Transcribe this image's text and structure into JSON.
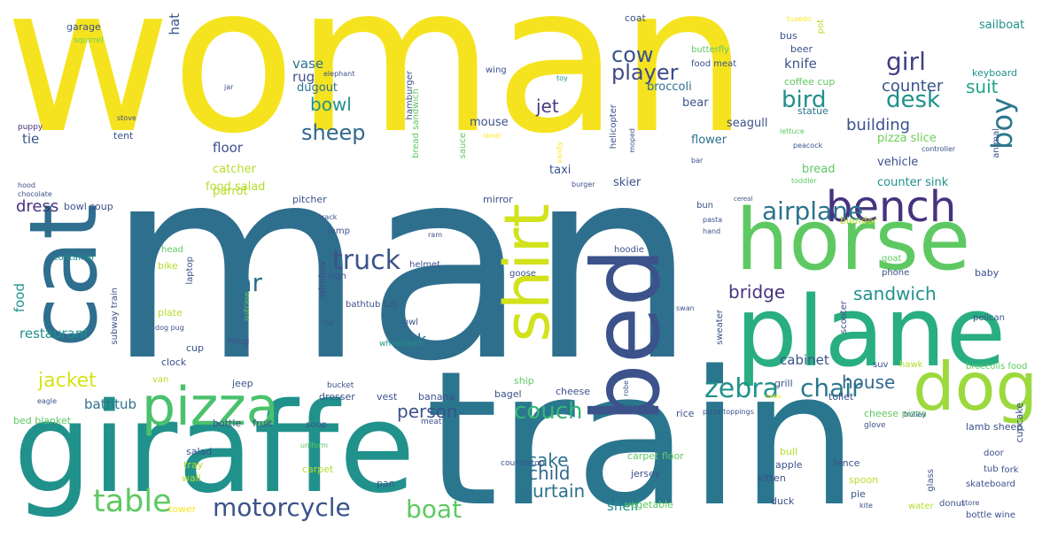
{
  "words": [
    {
      "text": "woman",
      "color": "#f5e31f",
      "vertical": false
    },
    {
      "text": "man",
      "color": "#2f6f8e",
      "vertical": false
    },
    {
      "text": "train",
      "color": "#2a768e",
      "vertical": false
    },
    {
      "text": "giraffe",
      "color": "#21918c",
      "vertical": false
    },
    {
      "text": "plane",
      "color": "#28ae80",
      "vertical": false
    },
    {
      "text": "horse",
      "color": "#5ec962",
      "vertical": false
    },
    {
      "text": "cat",
      "color": "#2e6e8e",
      "vertical": true
    },
    {
      "text": "bed",
      "color": "#3b528b",
      "vertical": true
    },
    {
      "text": "dog",
      "color": "#9bd93c",
      "vertical": false
    },
    {
      "text": "shirt",
      "color": "#d2e21b",
      "vertical": true
    },
    {
      "text": "pizza",
      "color": "#4ac16d",
      "vertical": false
    },
    {
      "text": "bench",
      "color": "#46337e",
      "vertical": false
    },
    {
      "text": "table",
      "color": "#5ec962",
      "vertical": false
    },
    {
      "text": "motorcycle",
      "color": "#3b528b",
      "vertical": false
    },
    {
      "text": "truck",
      "color": "#3b528b",
      "vertical": false
    },
    {
      "text": "airplane",
      "color": "#2c728e",
      "vertical": false
    },
    {
      "text": "zebra",
      "color": "#21918c",
      "vertical": false
    },
    {
      "text": "chair",
      "color": "#2a788e",
      "vertical": false
    },
    {
      "text": "couch",
      "color": "#35b779",
      "vertical": false
    },
    {
      "text": "boat",
      "color": "#5ec962",
      "vertical": false
    },
    {
      "text": "cow",
      "color": "#3b528b",
      "vertical": false
    },
    {
      "text": "player",
      "color": "#3e4a89",
      "vertical": false
    },
    {
      "text": "car",
      "color": "#2c728e",
      "vertical": false
    },
    {
      "text": "sheep",
      "color": "#31688e",
      "vertical": false
    },
    {
      "text": "bird",
      "color": "#218f8d",
      "vertical": false
    },
    {
      "text": "desk",
      "color": "#21918c",
      "vertical": false
    },
    {
      "text": "boy",
      "color": "#2a788e",
      "vertical": true
    },
    {
      "text": "girl",
      "color": "#433e85",
      "vertical": false
    },
    {
      "text": "person",
      "color": "#3b528b",
      "vertical": false
    },
    {
      "text": "sandwich",
      "color": "#21918c",
      "vertical": false
    },
    {
      "text": "cake",
      "color": "#2c728e",
      "vertical": false
    },
    {
      "text": "jacket",
      "color": "#d8e219",
      "vertical": false
    },
    {
      "text": "curtain",
      "color": "#2c728e",
      "vertical": false
    },
    {
      "text": "house",
      "color": "#31688e",
      "vertical": false
    },
    {
      "text": "bridge",
      "color": "#46337e",
      "vertical": false
    },
    {
      "text": "child",
      "color": "#31688e",
      "vertical": false
    },
    {
      "text": "bowl",
      "color": "#21918c",
      "vertical": false
    },
    {
      "text": "suit",
      "color": "#20a486",
      "vertical": false
    },
    {
      "text": "counter",
      "color": "#3b528b",
      "vertical": false
    },
    {
      "text": "building",
      "color": "#3b528b",
      "vertical": false
    },
    {
      "text": "dress",
      "color": "#46337e",
      "vertical": false
    },
    {
      "text": "sink",
      "color": "#2c728e",
      "vertical": false
    },
    {
      "text": "jet",
      "color": "#443983",
      "vertical": false
    },
    {
      "text": "vase",
      "color": "#2c728e",
      "vertical": false
    },
    {
      "text": "rug",
      "color": "#3b528b",
      "vertical": false
    },
    {
      "text": "food",
      "color": "#21918c",
      "vertical": true
    },
    {
      "text": "shelf",
      "color": "#21918c",
      "vertical": false
    },
    {
      "text": "bathtub",
      "color": "#2c728e",
      "vertical": false
    },
    {
      "text": "cabinet",
      "color": "#3b528b",
      "vertical": false
    },
    {
      "text": "knife",
      "color": "#3b528b",
      "vertical": false
    },
    {
      "text": "floor",
      "color": "#3b528b",
      "vertical": false
    },
    {
      "text": "hat",
      "color": "#3b528b",
      "vertical": true
    },
    {
      "text": "restaurant",
      "color": "#21918c",
      "vertical": false
    },
    {
      "text": "tie",
      "color": "#3b528b",
      "vertical": false
    },
    {
      "text": "dugout",
      "color": "#2c728e",
      "vertical": false
    },
    {
      "text": "mouse",
      "color": "#3b528b",
      "vertical": false
    },
    {
      "text": "seagull",
      "color": "#3b528b",
      "vertical": false
    },
    {
      "text": "flower",
      "color": "#2c728e",
      "vertical": false
    },
    {
      "text": "pizza slice",
      "color": "#6ece58",
      "vertical": false
    },
    {
      "text": "bread",
      "color": "#5ec962",
      "vertical": false
    },
    {
      "text": "vehicle",
      "color": "#3b528b",
      "vertical": false
    },
    {
      "text": "counter sink",
      "color": "#21918c",
      "vertical": false
    },
    {
      "text": "taxi",
      "color": "#3b528b",
      "vertical": false
    },
    {
      "text": "skier",
      "color": "#3b528b",
      "vertical": false
    },
    {
      "text": "broccoli",
      "color": "#2c728e",
      "vertical": false
    },
    {
      "text": "bear",
      "color": "#3b528b",
      "vertical": false
    },
    {
      "text": "coffee cup",
      "color": "#5ec962",
      "vertical": false
    },
    {
      "text": "statue",
      "color": "#2c728e",
      "vertical": false
    },
    {
      "text": "keyboard",
      "color": "#21918c",
      "vertical": false
    },
    {
      "text": "sailboat",
      "color": "#21918c",
      "vertical": false
    },
    {
      "text": "bus",
      "color": "#3b528b",
      "vertical": false
    },
    {
      "text": "beer",
      "color": "#3b528b",
      "vertical": false
    },
    {
      "text": "coat",
      "color": "#3b528b",
      "vertical": false
    },
    {
      "text": "garage",
      "color": "#3b528b",
      "vertical": false
    },
    {
      "text": "squirrel",
      "color": "#6ece58",
      "vertical": false
    },
    {
      "text": "puppy",
      "color": "#46337e",
      "vertical": false
    },
    {
      "text": "tent",
      "color": "#3b528b",
      "vertical": false
    },
    {
      "text": "stove",
      "color": "#3b528b",
      "vertical": false
    },
    {
      "text": "jar",
      "color": "#3b528b",
      "vertical": false
    },
    {
      "text": "wing",
      "color": "#3b528b",
      "vertical": false
    },
    {
      "text": "elephant",
      "color": "#3b528b",
      "vertical": false
    },
    {
      "text": "toy",
      "color": "#21918c",
      "vertical": false
    },
    {
      "text": "butterfly",
      "color": "#5ec962",
      "vertical": false
    },
    {
      "text": "food meat",
      "color": "#3b528b",
      "vertical": false
    },
    {
      "text": "tuxedo",
      "color": "#fde725",
      "vertical": false
    },
    {
      "text": "pot",
      "color": "#b5de2b",
      "vertical": true
    },
    {
      "text": "hamburger",
      "color": "#3b528b",
      "vertical": true
    },
    {
      "text": "bread sandwich",
      "color": "#5ec962",
      "vertical": true
    },
    {
      "text": "sauce",
      "color": "#5ec962",
      "vertical": true
    },
    {
      "text": "lamb",
      "color": "#fde725",
      "vertical": false
    },
    {
      "text": "vanity",
      "color": "#fde725",
      "vertical": true
    },
    {
      "text": "helicopter",
      "color": "#3b528b",
      "vertical": true
    },
    {
      "text": "moped",
      "color": "#3b528b",
      "vertical": true
    },
    {
      "text": "lettuce",
      "color": "#5ec962",
      "vertical": false
    },
    {
      "text": "peacock",
      "color": "#3b528b",
      "vertical": false
    },
    {
      "text": "controller",
      "color": "#3b528b",
      "vertical": false
    },
    {
      "text": "toddler",
      "color": "#5ec962",
      "vertical": false
    },
    {
      "text": "animal",
      "color": "#3b528b",
      "vertical": true
    },
    {
      "text": "bar",
      "color": "#3b528b",
      "vertical": false
    },
    {
      "text": "burger",
      "color": "#3b528b",
      "vertical": false
    },
    {
      "text": "catcher",
      "color": "#b5de2b",
      "vertical": false
    },
    {
      "text": "parrot",
      "color": "#b5de2b",
      "vertical": false
    },
    {
      "text": "food salad",
      "color": "#b5de2b",
      "vertical": false
    },
    {
      "text": "hood",
      "color": "#3b528b",
      "vertical": false
    },
    {
      "text": "chocolate",
      "color": "#3b528b",
      "vertical": false
    },
    {
      "text": "bowl soup",
      "color": "#3b528b",
      "vertical": false
    },
    {
      "text": "pitcher",
      "color": "#3b528b",
      "vertical": false
    },
    {
      "text": "mirror",
      "color": "#3b528b",
      "vertical": false
    },
    {
      "text": "track",
      "color": "#3b528b",
      "vertical": false
    },
    {
      "text": "cereal",
      "color": "#3b528b",
      "vertical": false
    },
    {
      "text": "pasta",
      "color": "#3b528b",
      "vertical": false
    },
    {
      "text": "bun",
      "color": "#3b528b",
      "vertical": false
    },
    {
      "text": "blender",
      "color": "#b5de2b",
      "vertical": false
    },
    {
      "text": "hand",
      "color": "#3b528b",
      "vertical": false
    },
    {
      "text": "lamp",
      "color": "#3b528b",
      "vertical": false
    },
    {
      "text": "ram",
      "color": "#3b528b",
      "vertical": false
    },
    {
      "text": "head",
      "color": "#5ec962",
      "vertical": false
    },
    {
      "text": "container",
      "color": "#21918c",
      "vertical": false
    },
    {
      "text": "bike",
      "color": "#b5de2b",
      "vertical": false
    },
    {
      "text": "laptop",
      "color": "#3b528b",
      "vertical": true
    },
    {
      "text": "window",
      "color": "#3b528b",
      "vertical": true
    },
    {
      "text": "sign",
      "color": "#3b528b",
      "vertical": false
    },
    {
      "text": "helmet",
      "color": "#3b528b",
      "vertical": false
    },
    {
      "text": "goose",
      "color": "#3b528b",
      "vertical": false
    },
    {
      "text": "hoodie",
      "color": "#3b528b",
      "vertical": false
    },
    {
      "text": "goat",
      "color": "#5ec962",
      "vertical": false
    },
    {
      "text": "phone",
      "color": "#3b528b",
      "vertical": false
    },
    {
      "text": "scooter",
      "color": "#3b528b",
      "vertical": true
    },
    {
      "text": "baby",
      "color": "#3b528b",
      "vertical": false
    },
    {
      "text": "subway train",
      "color": "#3b528b",
      "vertical": true
    },
    {
      "text": "plate",
      "color": "#b5de2b",
      "vertical": false
    },
    {
      "text": "suitcase",
      "color": "#5ec962",
      "vertical": true
    },
    {
      "text": "hut",
      "color": "#3b528b",
      "vertical": false
    },
    {
      "text": "bathtub tub",
      "color": "#3b528b",
      "vertical": false
    },
    {
      "text": "dog pug",
      "color": "#3b528b",
      "vertical": false
    },
    {
      "text": "owl",
      "color": "#3b528b",
      "vertical": false
    },
    {
      "text": "wheelchair",
      "color": "#21918c",
      "vertical": false
    },
    {
      "text": "swan",
      "color": "#3b528b",
      "vertical": false
    },
    {
      "text": "sweater",
      "color": "#3b528b",
      "vertical": true
    },
    {
      "text": "pelican",
      "color": "#3b528b",
      "vertical": false
    },
    {
      "text": "mug",
      "color": "#3b528b",
      "vertical": false
    },
    {
      "text": "cup",
      "color": "#3b528b",
      "vertical": false
    },
    {
      "text": "clock",
      "color": "#3b528b",
      "vertical": false
    },
    {
      "text": "van",
      "color": "#b5de2b",
      "vertical": false
    },
    {
      "text": "jeep",
      "color": "#3b528b",
      "vertical": false
    },
    {
      "text": "bucket",
      "color": "#3b528b",
      "vertical": false
    },
    {
      "text": "ship",
      "color": "#5ec962",
      "vertical": false
    },
    {
      "text": "robe",
      "color": "#3b528b",
      "vertical": true
    },
    {
      "text": "suv",
      "color": "#3b528b",
      "vertical": false
    },
    {
      "text": "hawk",
      "color": "#b5de2b",
      "vertical": false
    },
    {
      "text": "broccolis food",
      "color": "#5ec962",
      "vertical": false
    },
    {
      "text": "grill",
      "color": "#3b528b",
      "vertical": false
    },
    {
      "text": "toilet",
      "color": "#3b528b",
      "vertical": false
    },
    {
      "text": "cookie",
      "color": "#fde725",
      "vertical": false
    },
    {
      "text": "eagle",
      "color": "#3b528b",
      "vertical": false
    },
    {
      "text": "bed blanket",
      "color": "#5ec962",
      "vertical": false
    },
    {
      "text": "bottle",
      "color": "#3b528b",
      "vertical": false
    },
    {
      "text": "fruit",
      "color": "#3b528b",
      "vertical": false
    },
    {
      "text": "soup",
      "color": "#3b528b",
      "vertical": false
    },
    {
      "text": "dresser",
      "color": "#3b528b",
      "vertical": false
    },
    {
      "text": "vest",
      "color": "#3b528b",
      "vertical": false
    },
    {
      "text": "banana",
      "color": "#3b528b",
      "vertical": false
    },
    {
      "text": "bagel",
      "color": "#3b528b",
      "vertical": false
    },
    {
      "text": "cheese",
      "color": "#3b528b",
      "vertical": false
    },
    {
      "text": "meat",
      "color": "#3b528b",
      "vertical": false
    },
    {
      "text": "rice",
      "color": "#3b528b",
      "vertical": false
    },
    {
      "text": "pizza toppings",
      "color": "#3b528b",
      "vertical": false
    },
    {
      "text": "cheese pizza",
      "color": "#5ec962",
      "vertical": false
    },
    {
      "text": "trolley",
      "color": "#3b528b",
      "vertical": false
    },
    {
      "text": "glove",
      "color": "#3b528b",
      "vertical": false
    },
    {
      "text": "lamb sheep",
      "color": "#3b528b",
      "vertical": false
    },
    {
      "text": "cupcake",
      "color": "#3b528b",
      "vertical": true
    },
    {
      "text": "uniform",
      "color": "#5ec962",
      "vertical": false
    },
    {
      "text": "salad",
      "color": "#3b528b",
      "vertical": false
    },
    {
      "text": "tray",
      "color": "#b5de2b",
      "vertical": false
    },
    {
      "text": "wall",
      "color": "#b5de2b",
      "vertical": false
    },
    {
      "text": "carpet",
      "color": "#b5de2b",
      "vertical": false
    },
    {
      "text": "countertop",
      "color": "#3b528b",
      "vertical": false
    },
    {
      "text": "pan",
      "color": "#3b528b",
      "vertical": false
    },
    {
      "text": "carpet floor",
      "color": "#5ec962",
      "vertical": false
    },
    {
      "text": "jersey",
      "color": "#3b528b",
      "vertical": false
    },
    {
      "text": "vegetable",
      "color": "#5ec962",
      "vertical": false
    },
    {
      "text": "bull",
      "color": "#b5de2b",
      "vertical": false
    },
    {
      "text": "apple",
      "color": "#3b528b",
      "vertical": false
    },
    {
      "text": "kitten",
      "color": "#3b528b",
      "vertical": false
    },
    {
      "text": "duck",
      "color": "#3b528b",
      "vertical": false
    },
    {
      "text": "fence",
      "color": "#3b528b",
      "vertical": false
    },
    {
      "text": "spoon",
      "color": "#b5de2b",
      "vertical": false
    },
    {
      "text": "pie",
      "color": "#3b528b",
      "vertical": false
    },
    {
      "text": "kite",
      "color": "#3b528b",
      "vertical": false
    },
    {
      "text": "water",
      "color": "#b5de2b",
      "vertical": false
    },
    {
      "text": "glass",
      "color": "#3b528b",
      "vertical": true
    },
    {
      "text": "door",
      "color": "#3b528b",
      "vertical": false
    },
    {
      "text": "tub",
      "color": "#3b528b",
      "vertical": false
    },
    {
      "text": "fork",
      "color": "#3b528b",
      "vertical": false
    },
    {
      "text": "skateboard",
      "color": "#3b528b",
      "vertical": false
    },
    {
      "text": "donut",
      "color": "#3b528b",
      "vertical": false
    },
    {
      "text": "bottle wine",
      "color": "#3b528b",
      "vertical": false
    },
    {
      "text": "tower",
      "color": "#fde725",
      "vertical": false
    },
    {
      "text": "store",
      "color": "#3b528b",
      "vertical": false
    }
  ]
}
